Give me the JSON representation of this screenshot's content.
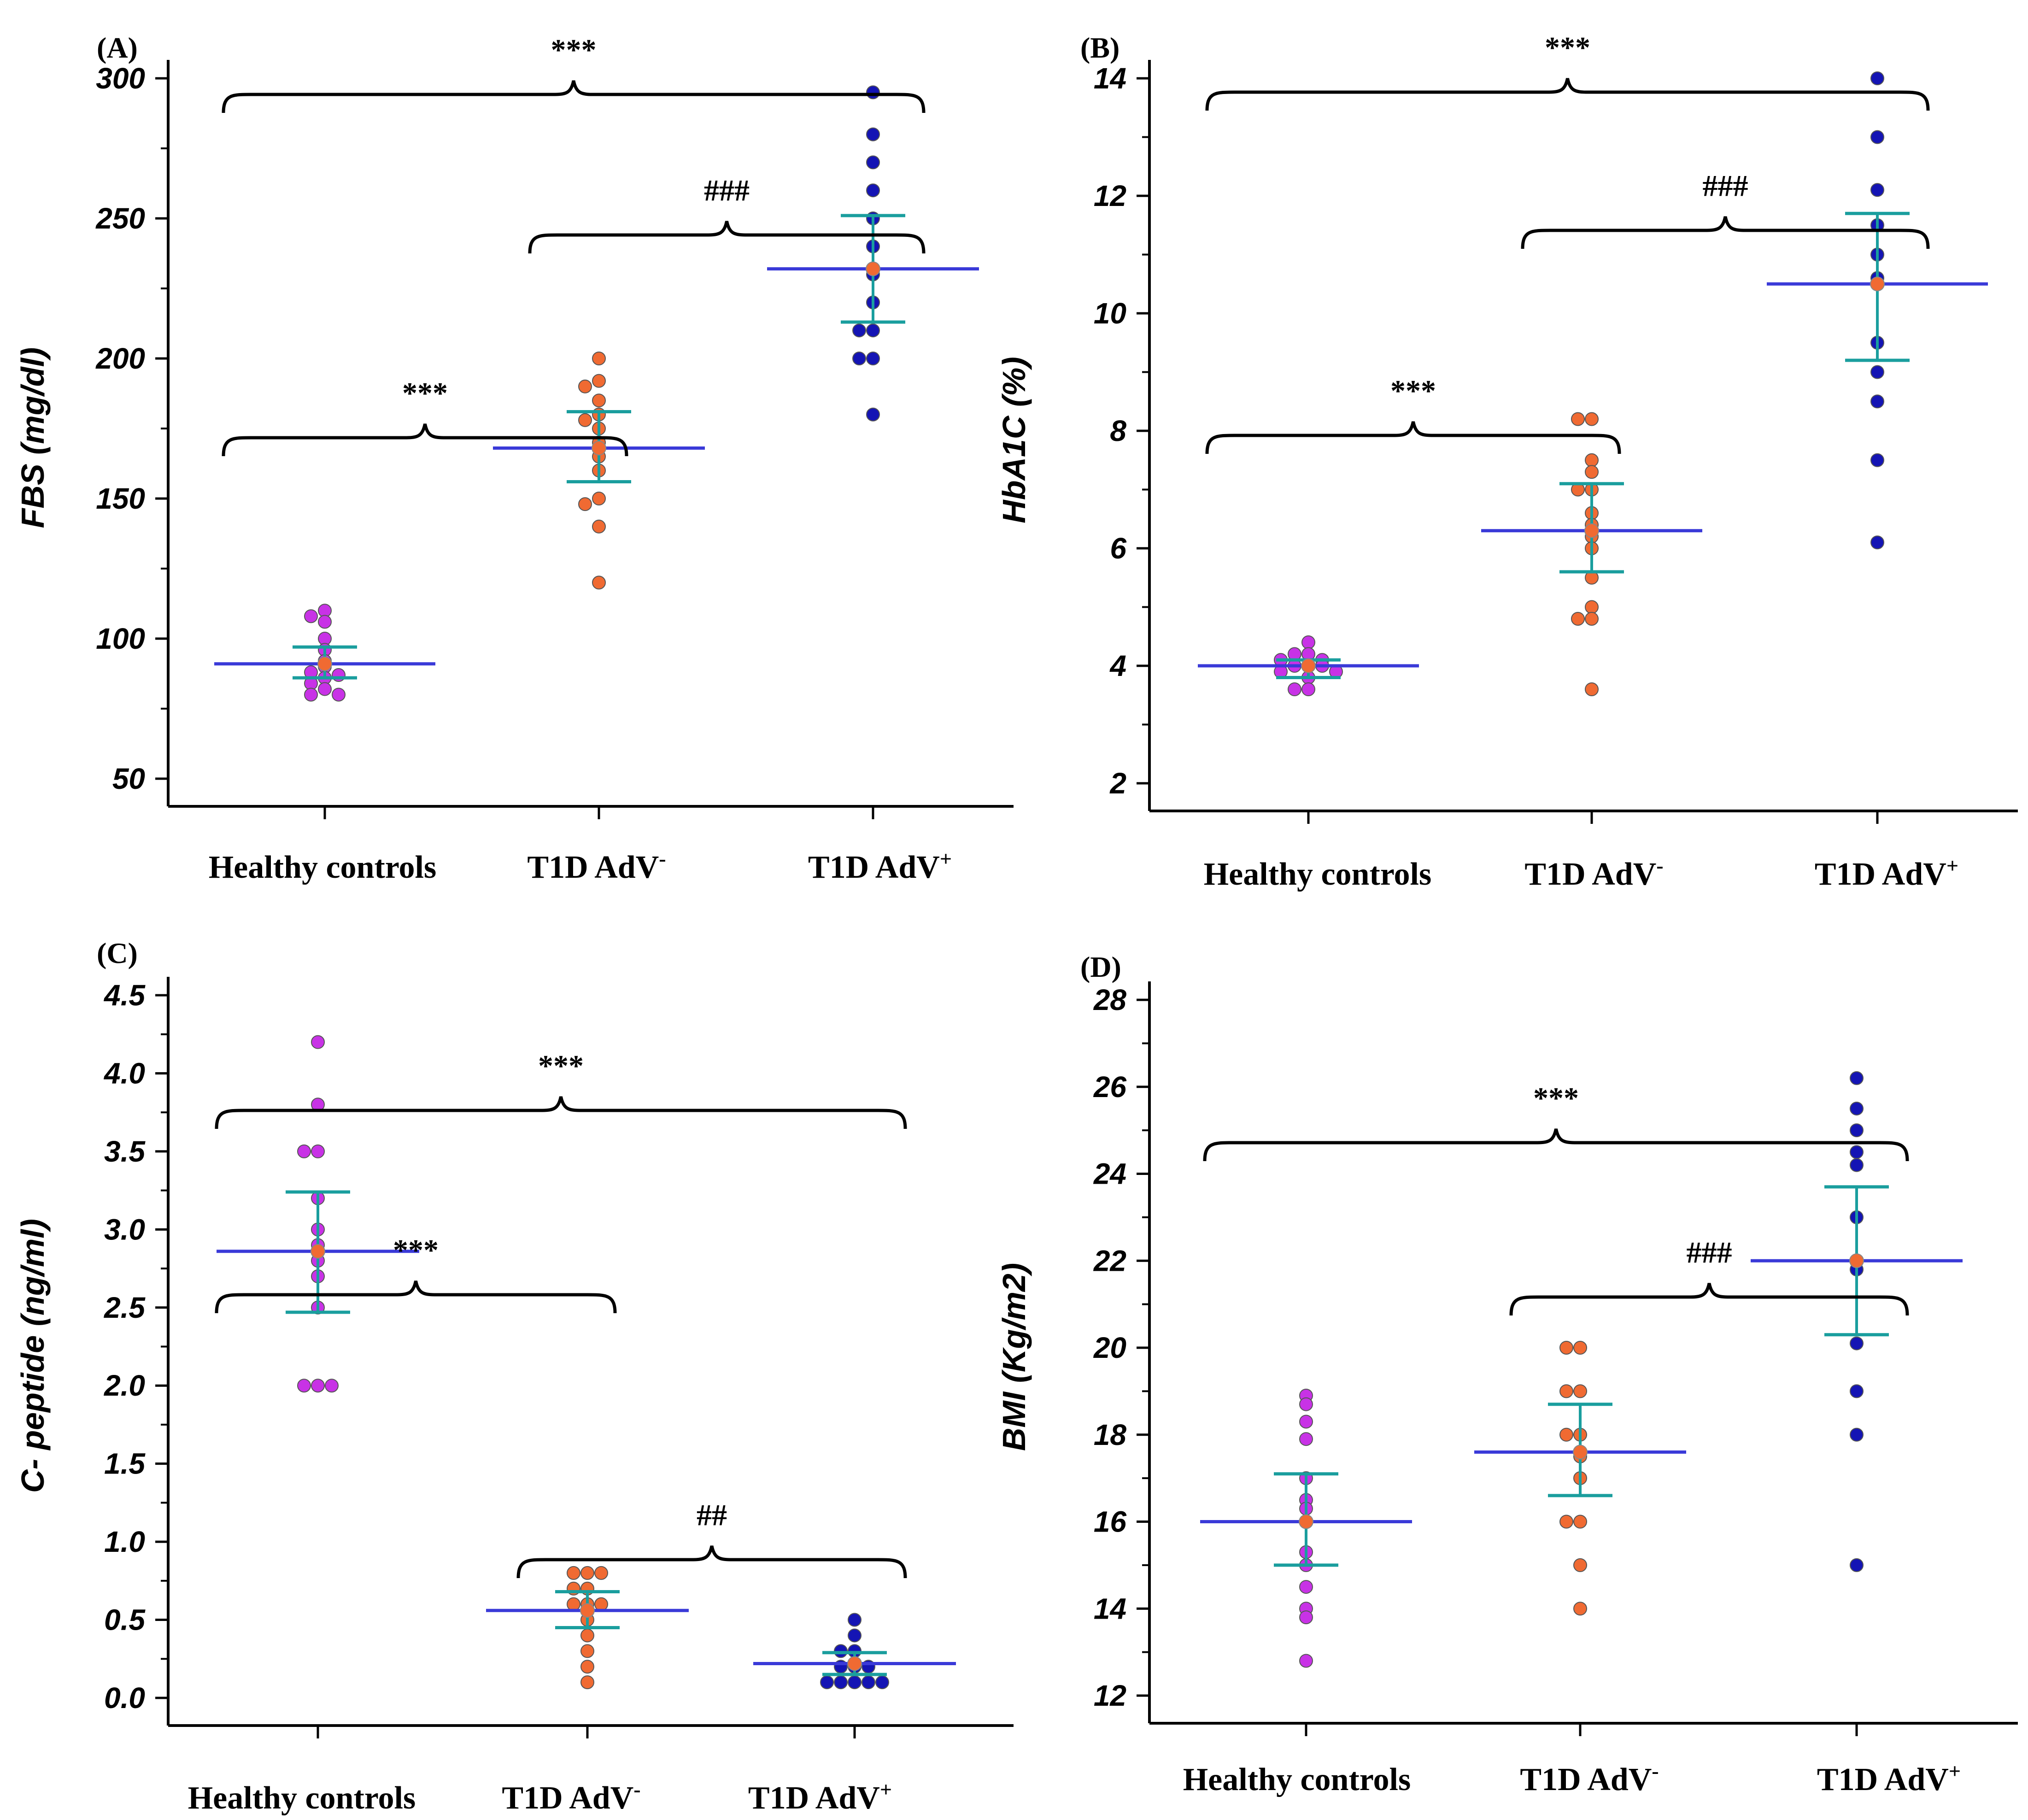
{
  "chart_data": [
    {
      "type": "scatter",
      "panel": "(A)",
      "ylabel": "FBS (mg/dl)",
      "ylim": [
        50,
        300
      ],
      "yticks": [
        50,
        100,
        150,
        200,
        250,
        300
      ],
      "categories": [
        "Healthy controls",
        "T1D AdV-",
        "T1D AdV+"
      ],
      "series": [
        {
          "name": "Healthy controls",
          "color": "#c832e6",
          "mean": 91,
          "ci_low": 86,
          "ci_high": 97,
          "values": [
            110,
            108,
            106,
            100,
            96,
            92,
            90,
            88,
            87,
            86,
            84,
            82,
            80,
            80
          ]
        },
        {
          "name": "T1D AdV-",
          "color": "#f06a32",
          "mean": 168,
          "ci_low": 156,
          "ci_high": 181,
          "values": [
            200,
            192,
            190,
            185,
            180,
            178,
            175,
            170,
            165,
            160,
            150,
            148,
            140,
            120
          ]
        },
        {
          "name": "T1D AdV+",
          "color": "#1414b4",
          "mean": 232,
          "ci_low": 213,
          "ci_high": 251,
          "values": [
            295,
            280,
            270,
            260,
            250,
            240,
            230,
            220,
            210,
            210,
            200,
            200,
            180
          ]
        }
      ],
      "brackets": [
        {
          "from": 0,
          "to": 2,
          "label": "***"
        },
        {
          "from": 1,
          "to": 2,
          "label": "###"
        },
        {
          "from": 0,
          "to": 1,
          "label": "***"
        }
      ]
    },
    {
      "type": "scatter",
      "panel": "(B)",
      "ylabel": "HbA1C (%)",
      "ylim": [
        2,
        14
      ],
      "yticks": [
        2,
        4,
        6,
        8,
        10,
        12,
        14
      ],
      "categories": [
        "Healthy controls",
        "T1D AdV-",
        "T1D AdV+"
      ],
      "series": [
        {
          "name": "Healthy controls",
          "color": "#c832e6",
          "mean": 4.0,
          "ci_low": 3.8,
          "ci_high": 4.1,
          "values": [
            4.4,
            4.2,
            4.2,
            4.1,
            4.1,
            4.0,
            4.0,
            4.0,
            3.9,
            3.9,
            3.8,
            3.6,
            3.6
          ]
        },
        {
          "name": "T1D AdV-",
          "color": "#f06a32",
          "mean": 6.3,
          "ci_low": 5.6,
          "ci_high": 7.1,
          "values": [
            8.2,
            8.2,
            7.5,
            7.3,
            7.0,
            7.0,
            6.6,
            6.4,
            6.2,
            6.0,
            5.5,
            5.0,
            4.8,
            4.8,
            3.6
          ]
        },
        {
          "name": "T1D AdV+",
          "color": "#1414b4",
          "mean": 10.5,
          "ci_low": 9.2,
          "ci_high": 11.7,
          "values": [
            14.0,
            13.0,
            12.1,
            11.5,
            11.0,
            10.6,
            10.5,
            9.5,
            9.0,
            8.5,
            7.5,
            6.1
          ]
        }
      ],
      "brackets": [
        {
          "from": 0,
          "to": 2,
          "label": "***"
        },
        {
          "from": 1,
          "to": 2,
          "label": "###"
        },
        {
          "from": 0,
          "to": 1,
          "label": "***"
        }
      ]
    },
    {
      "type": "scatter",
      "panel": "(C)",
      "ylabel": "C- peptide (ng/ml)",
      "ylim": [
        0.0,
        4.5
      ],
      "yticks": [
        0.0,
        0.5,
        1.0,
        1.5,
        2.0,
        2.5,
        3.0,
        3.5,
        4.0,
        4.5
      ],
      "categories": [
        "Healthy controls",
        "T1D AdV-",
        "T1D AdV+"
      ],
      "series": [
        {
          "name": "Healthy controls",
          "color": "#c832e6",
          "mean": 2.86,
          "ci_low": 2.47,
          "ci_high": 3.24,
          "values": [
            4.2,
            3.8,
            3.5,
            3.5,
            3.2,
            3.0,
            2.9,
            2.8,
            2.7,
            2.5,
            2.0,
            2.0,
            2.0
          ]
        },
        {
          "name": "T1D AdV-",
          "color": "#f06a32",
          "mean": 0.56,
          "ci_low": 0.45,
          "ci_high": 0.68,
          "values": [
            0.8,
            0.8,
            0.8,
            0.7,
            0.7,
            0.6,
            0.6,
            0.6,
            0.5,
            0.4,
            0.3,
            0.2,
            0.1
          ]
        },
        {
          "name": "T1D AdV+",
          "color": "#1414b4",
          "mean": 0.22,
          "ci_low": 0.15,
          "ci_high": 0.29,
          "values": [
            0.5,
            0.4,
            0.3,
            0.3,
            0.2,
            0.2,
            0.2,
            0.1,
            0.1,
            0.1,
            0.1,
            0.1
          ]
        }
      ],
      "brackets": [
        {
          "from": 0,
          "to": 2,
          "label": "***"
        },
        {
          "from": 0,
          "to": 1,
          "label": "***"
        },
        {
          "from": 1,
          "to": 2,
          "label": "##"
        }
      ]
    },
    {
      "type": "scatter",
      "panel": "(D)",
      "ylabel": "BMI (Kg/m2)",
      "ylim": [
        12,
        28
      ],
      "yticks": [
        12,
        14,
        16,
        18,
        20,
        22,
        24,
        26,
        28
      ],
      "categories": [
        "Healthy controls",
        "T1D AdV-",
        "T1D AdV+"
      ],
      "series": [
        {
          "name": "Healthy controls",
          "color": "#c832e6",
          "mean": 16.0,
          "ci_low": 15.0,
          "ci_high": 17.1,
          "values": [
            18.9,
            18.7,
            18.3,
            17.9,
            17.0,
            16.5,
            16.3,
            16.0,
            15.3,
            15.0,
            14.5,
            14.0,
            13.8,
            12.8
          ]
        },
        {
          "name": "T1D AdV-",
          "color": "#f06a32",
          "mean": 17.6,
          "ci_low": 16.6,
          "ci_high": 18.7,
          "values": [
            20.0,
            20.0,
            19.0,
            19.0,
            18.0,
            18.0,
            17.5,
            17.0,
            16.0,
            16.0,
            15.0,
            14.0
          ]
        },
        {
          "name": "T1D AdV+",
          "color": "#1414b4",
          "mean": 22.0,
          "ci_low": 20.3,
          "ci_high": 23.7,
          "values": [
            26.2,
            25.5,
            25.0,
            24.5,
            24.2,
            23.0,
            22.0,
            21.8,
            20.1,
            19.0,
            18.0,
            15.0
          ]
        }
      ],
      "brackets": [
        {
          "from": 0,
          "to": 2,
          "label": "***"
        },
        {
          "from": 1,
          "to": 2,
          "label": "###"
        }
      ]
    }
  ]
}
